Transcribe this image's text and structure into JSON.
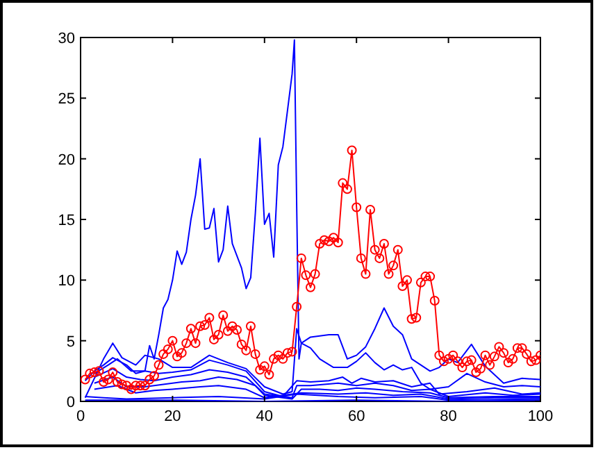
{
  "chart_data": {
    "type": "line",
    "xlim": [
      0,
      100
    ],
    "ylim": [
      0,
      30
    ],
    "xticks": [
      0,
      20,
      40,
      60,
      80,
      100
    ],
    "yticks": [
      0,
      5,
      10,
      15,
      20,
      25,
      30
    ],
    "grid": false,
    "line_style": "solid",
    "series": [
      {
        "color": "#0000ff",
        "marker": "none",
        "x": [
          1,
          3,
          5,
          7,
          10,
          12,
          14,
          15,
          16,
          17,
          18,
          19,
          20,
          21,
          22,
          23,
          24,
          25,
          26,
          27,
          28,
          29,
          30,
          31,
          32,
          33,
          34,
          35,
          36,
          37,
          38,
          39,
          40,
          41,
          42,
          43,
          44,
          45,
          46,
          46.5,
          47,
          47.5,
          48,
          50,
          52,
          54,
          56,
          58,
          60,
          62,
          64,
          66,
          68,
          70,
          72,
          74,
          76,
          78,
          80,
          82,
          85,
          88,
          92,
          96,
          100
        ],
        "values": [
          1.7,
          2.5,
          3.0,
          3.6,
          3.0,
          2.3,
          2.5,
          4.6,
          3.5,
          5.5,
          7.7,
          8.4,
          10.0,
          12.4,
          11.3,
          12.3,
          15.0,
          17.0,
          20.0,
          14.2,
          14.3,
          15.9,
          11.5,
          12.5,
          16.1,
          13.0,
          12.0,
          11.0,
          9.3,
          10.2,
          15.5,
          21.7,
          14.6,
          15.5,
          11.9,
          19.5,
          21.0,
          24.0,
          27.0,
          29.8,
          16.0,
          3.5,
          4.8,
          5.3,
          5.4,
          5.5,
          5.5,
          3.5,
          3.8,
          4.5,
          6.0,
          7.7,
          6.2,
          5.5,
          3.5,
          3.0,
          2.5,
          2.8,
          3.5,
          3.2,
          4.7,
          2.9,
          1.5,
          1.9,
          1.8
        ]
      },
      {
        "color": "#0000ff",
        "marker": "none",
        "x": [
          1,
          5,
          7,
          9,
          12,
          14,
          17,
          20,
          24,
          28,
          32,
          36,
          40,
          44,
          46,
          47,
          48,
          50,
          52,
          55,
          58,
          60,
          62,
          64,
          66,
          68,
          70,
          72,
          74,
          76,
          80,
          84,
          88,
          92,
          96,
          100
        ],
        "values": [
          0.3,
          3.5,
          4.8,
          3.6,
          3.0,
          3.8,
          3.5,
          2.8,
          2.8,
          3.8,
          3.2,
          2.7,
          1.2,
          0.6,
          0.8,
          6.0,
          4.8,
          4.4,
          3.5,
          2.8,
          2.8,
          3.3,
          4.0,
          3.2,
          2.6,
          3.0,
          2.6,
          2.8,
          1.5,
          1.0,
          1.2,
          2.3,
          1.6,
          1.2,
          1.3,
          1.2
        ]
      },
      {
        "color": "#0000ff",
        "marker": "none",
        "x": [
          3,
          6,
          8,
          11,
          14,
          17,
          20,
          24,
          28,
          32,
          36,
          40,
          44,
          47,
          50,
          54,
          57,
          59,
          61,
          64,
          68,
          72,
          76,
          78,
          84,
          90,
          96,
          100
        ],
        "values": [
          2.3,
          3.0,
          3.5,
          2.5,
          2.5,
          2.3,
          2.4,
          2.6,
          3.4,
          3.0,
          2.5,
          0.8,
          0.4,
          1.7,
          1.6,
          1.7,
          2.0,
          1.5,
          1.9,
          1.6,
          1.7,
          1.2,
          1.5,
          0.6,
          0.8,
          1.1,
          0.6,
          0.7
        ]
      },
      {
        "color": "#0000ff",
        "marker": "none",
        "x": [
          3,
          7,
          10,
          13,
          16,
          20,
          24,
          28,
          32,
          36,
          40,
          46,
          47,
          50,
          56,
          60,
          64,
          68,
          72,
          76,
          80,
          88,
          94,
          100
        ],
        "values": [
          2.0,
          2.7,
          2.0,
          1.8,
          1.7,
          2.0,
          2.2,
          2.6,
          2.4,
          2.0,
          0.6,
          0.3,
          1.3,
          1.3,
          1.5,
          1.3,
          1.5,
          1.3,
          0.9,
          1.0,
          0.4,
          0.7,
          0.5,
          0.6
        ]
      },
      {
        "color": "#0000ff",
        "marker": "none",
        "x": [
          3,
          7,
          10,
          14,
          18,
          22,
          26,
          30,
          34,
          38,
          40,
          46,
          48,
          52,
          56,
          60,
          64,
          70,
          76,
          80,
          90,
          100
        ],
        "values": [
          1.5,
          2.0,
          1.2,
          1.2,
          1.4,
          1.6,
          1.7,
          2.0,
          1.8,
          1.3,
          0.5,
          0.2,
          1.0,
          1.0,
          0.9,
          1.1,
          1.0,
          0.8,
          0.7,
          0.3,
          0.4,
          0.4
        ]
      },
      {
        "color": "#0000ff",
        "marker": "none",
        "x": [
          3,
          8,
          12,
          16,
          20,
          26,
          30,
          36,
          40,
          48,
          56,
          62,
          68,
          74,
          80,
          90,
          100
        ],
        "values": [
          1.0,
          1.3,
          0.7,
          0.9,
          1.0,
          1.2,
          1.3,
          1.0,
          0.3,
          0.7,
          0.6,
          0.7,
          0.5,
          0.6,
          0.2,
          0.3,
          0.3
        ]
      },
      {
        "color": "#0000ff",
        "marker": "none",
        "x": [
          1,
          5,
          10,
          20,
          30,
          40,
          47,
          56,
          64,
          74,
          80,
          100
        ],
        "values": [
          0.4,
          0.3,
          0.2,
          0.3,
          0.4,
          0.2,
          0.6,
          0.4,
          0.3,
          0.4,
          0.1,
          0.2
        ]
      },
      {
        "color": "#0000ff",
        "marker": "none",
        "x": [
          1,
          20,
          40,
          60,
          80,
          100
        ],
        "values": [
          0.1,
          0.1,
          0.0,
          0.1,
          0.0,
          0.1
        ]
      },
      {
        "color": "#ff0000",
        "marker": "circle",
        "x": [
          1,
          2,
          3,
          4,
          5,
          6,
          7,
          8,
          9,
          10,
          11,
          12,
          13,
          14,
          15,
          16,
          17,
          18,
          19,
          20,
          21,
          22,
          23,
          24,
          25,
          26,
          27,
          28,
          29,
          30,
          31,
          32,
          33,
          34,
          35,
          36,
          37,
          38,
          39,
          40,
          41,
          42,
          43,
          44,
          45,
          46,
          47,
          48,
          49,
          50,
          51,
          52,
          53,
          54,
          55,
          56,
          57,
          58,
          59,
          60,
          61,
          62,
          63,
          64,
          65,
          66,
          67,
          68,
          69,
          70,
          71,
          72,
          73,
          74,
          75,
          76,
          77,
          78,
          79,
          80,
          81,
          82,
          83,
          84,
          85,
          86,
          87,
          88,
          89,
          90,
          91,
          92,
          93,
          94,
          95,
          96,
          97,
          98,
          99,
          100
        ],
        "values": [
          1.8,
          2.3,
          2.4,
          2.5,
          1.6,
          1.8,
          2.4,
          1.6,
          1.4,
          1.3,
          1.0,
          1.3,
          1.3,
          1.3,
          1.8,
          2.1,
          3.0,
          3.9,
          4.3,
          5.0,
          3.7,
          4.0,
          4.8,
          6.0,
          4.8,
          6.2,
          6.3,
          6.9,
          5.1,
          5.5,
          7.1,
          5.8,
          6.2,
          5.9,
          4.7,
          4.2,
          6.2,
          3.9,
          2.6,
          2.9,
          2.2,
          3.5,
          3.8,
          3.5,
          4.0,
          4.1,
          7.8,
          11.8,
          10.4,
          9.4,
          10.5,
          13.0,
          13.3,
          13.2,
          13.5,
          13.1,
          18.0,
          17.5,
          20.7,
          16.0,
          11.8,
          10.5,
          15.8,
          12.5,
          11.8,
          13.0,
          10.5,
          11.2,
          12.5,
          9.5,
          10.0,
          6.8,
          6.9,
          9.8,
          10.3,
          10.3,
          8.3,
          3.8,
          3.3,
          3.5,
          3.8,
          3.3,
          2.8,
          3.3,
          3.4,
          2.4,
          2.7,
          3.8,
          3.0,
          3.7,
          4.5,
          4.0,
          3.2,
          3.5,
          4.4,
          4.4,
          3.9,
          3.3,
          3.4,
          3.8
        ]
      }
    ]
  }
}
